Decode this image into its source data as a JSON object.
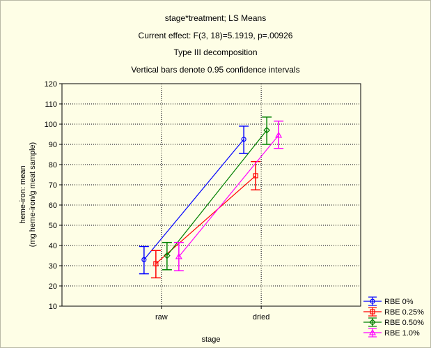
{
  "chart_data": {
    "type": "line",
    "title": "stage*treatment; LS Means",
    "subtitles": [
      "Current effect: F(3, 18)=5.1919, p=.00926",
      "Type III decomposition",
      "Vertical bars denote 0.95 confidence intervals"
    ],
    "xlabel": "stage",
    "ylabel": "heme-iron: mean",
    "ylabel2": "(mg heme-iron/g meat sample)",
    "categories": [
      "raw",
      "dried"
    ],
    "ylim": [
      10,
      120
    ],
    "yticks": [
      10,
      20,
      30,
      40,
      50,
      60,
      70,
      80,
      90,
      100,
      110,
      120
    ],
    "grid": true,
    "legend_position": "bottom-right",
    "series": [
      {
        "name": "RBE 0%",
        "color": "#0000ff",
        "marker": "circle",
        "values": [
          33,
          92.5
        ],
        "ci_low": [
          26,
          85.5
        ],
        "ci_high": [
          39.5,
          99
        ]
      },
      {
        "name": "RBE 0.25%",
        "color": "#ff0000",
        "marker": "square",
        "values": [
          31,
          74.5
        ],
        "ci_low": [
          24,
          67.5
        ],
        "ci_high": [
          37.5,
          81.5
        ]
      },
      {
        "name": "RBE 0.50%",
        "color": "#008000",
        "marker": "diamond",
        "values": [
          35,
          97
        ],
        "ci_low": [
          28,
          90
        ],
        "ci_high": [
          41.5,
          103.5
        ]
      },
      {
        "name": "RBE 1.0%",
        "color": "#ff00ff",
        "marker": "triangle",
        "values": [
          34.5,
          94.5
        ],
        "ci_low": [
          27.5,
          88
        ],
        "ci_high": [
          41.5,
          101.5
        ]
      }
    ]
  }
}
